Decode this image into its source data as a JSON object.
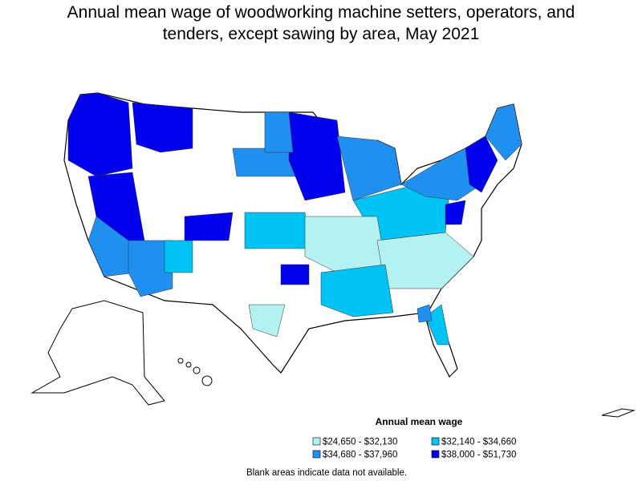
{
  "title": [
    "Annual mean wage of woodworking machine setters, operators, and",
    "tenders, except sawing by area, May 2021"
  ],
  "legend": {
    "title": "Annual mean wage",
    "items": [
      {
        "label": "$24,650 - $32,130",
        "color": "#b3f2f0"
      },
      {
        "label": "$32,140 - $34,660",
        "color": "#00c3f5"
      },
      {
        "label": "$34,680 - $37,960",
        "color": "#2090f0"
      },
      {
        "label": "$38,000 - $51,730",
        "color": "#0000ee"
      }
    ]
  },
  "note": "Blank areas indicate data not available."
}
